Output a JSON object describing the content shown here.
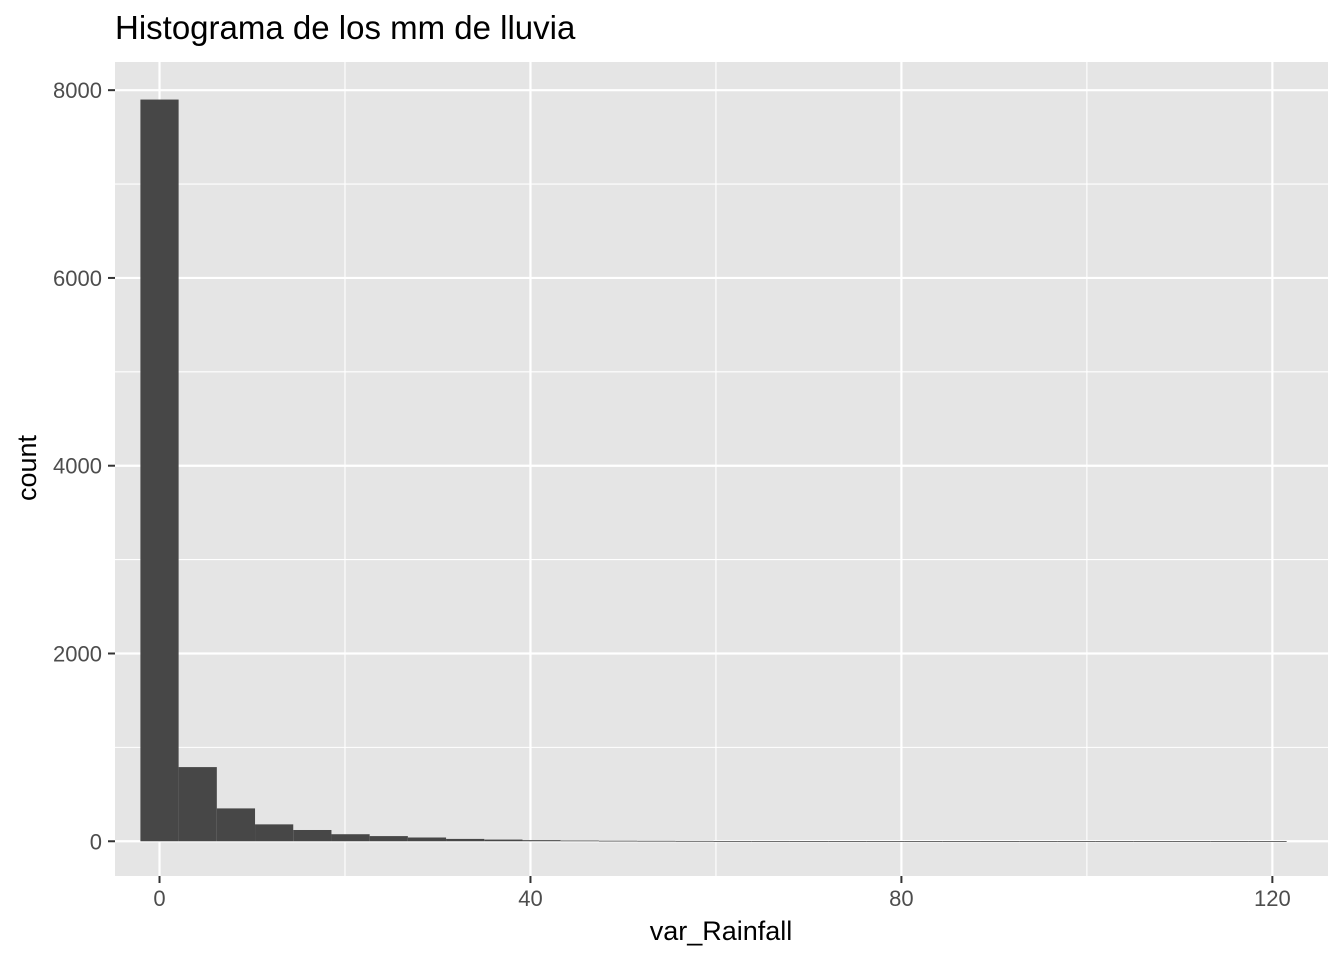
{
  "chart_data": {
    "type": "bar",
    "title": "Histograma de los mm de lluvia",
    "xlabel": "var_Rainfall",
    "ylabel": "count",
    "xlim": [
      -4.8,
      126
    ],
    "ylim": [
      -370,
      8300
    ],
    "x_ticks": [
      0,
      40,
      80,
      120
    ],
    "x_tick_labels": [
      "0",
      "40",
      "80",
      "120"
    ],
    "y_ticks": [
      0,
      2000,
      4000,
      6000,
      8000
    ],
    "y_tick_labels": [
      "0",
      "2000",
      "4000",
      "6000",
      "8000"
    ],
    "bin_width": 4.12,
    "bin_start": -2.06,
    "values": [
      7900,
      790,
      350,
      180,
      120,
      75,
      55,
      40,
      25,
      18,
      12,
      8,
      6,
      5,
      4,
      3,
      3,
      2,
      2,
      2,
      1,
      1,
      1,
      1,
      1,
      1,
      1,
      1,
      1,
      1
    ],
    "grid": true,
    "colors": {
      "panel_background": "#e5e5e5",
      "grid_major": "#ffffff",
      "bar_fill": "#474747",
      "tick_label": "#4d4d4d",
      "tick_mark": "#333333"
    }
  }
}
